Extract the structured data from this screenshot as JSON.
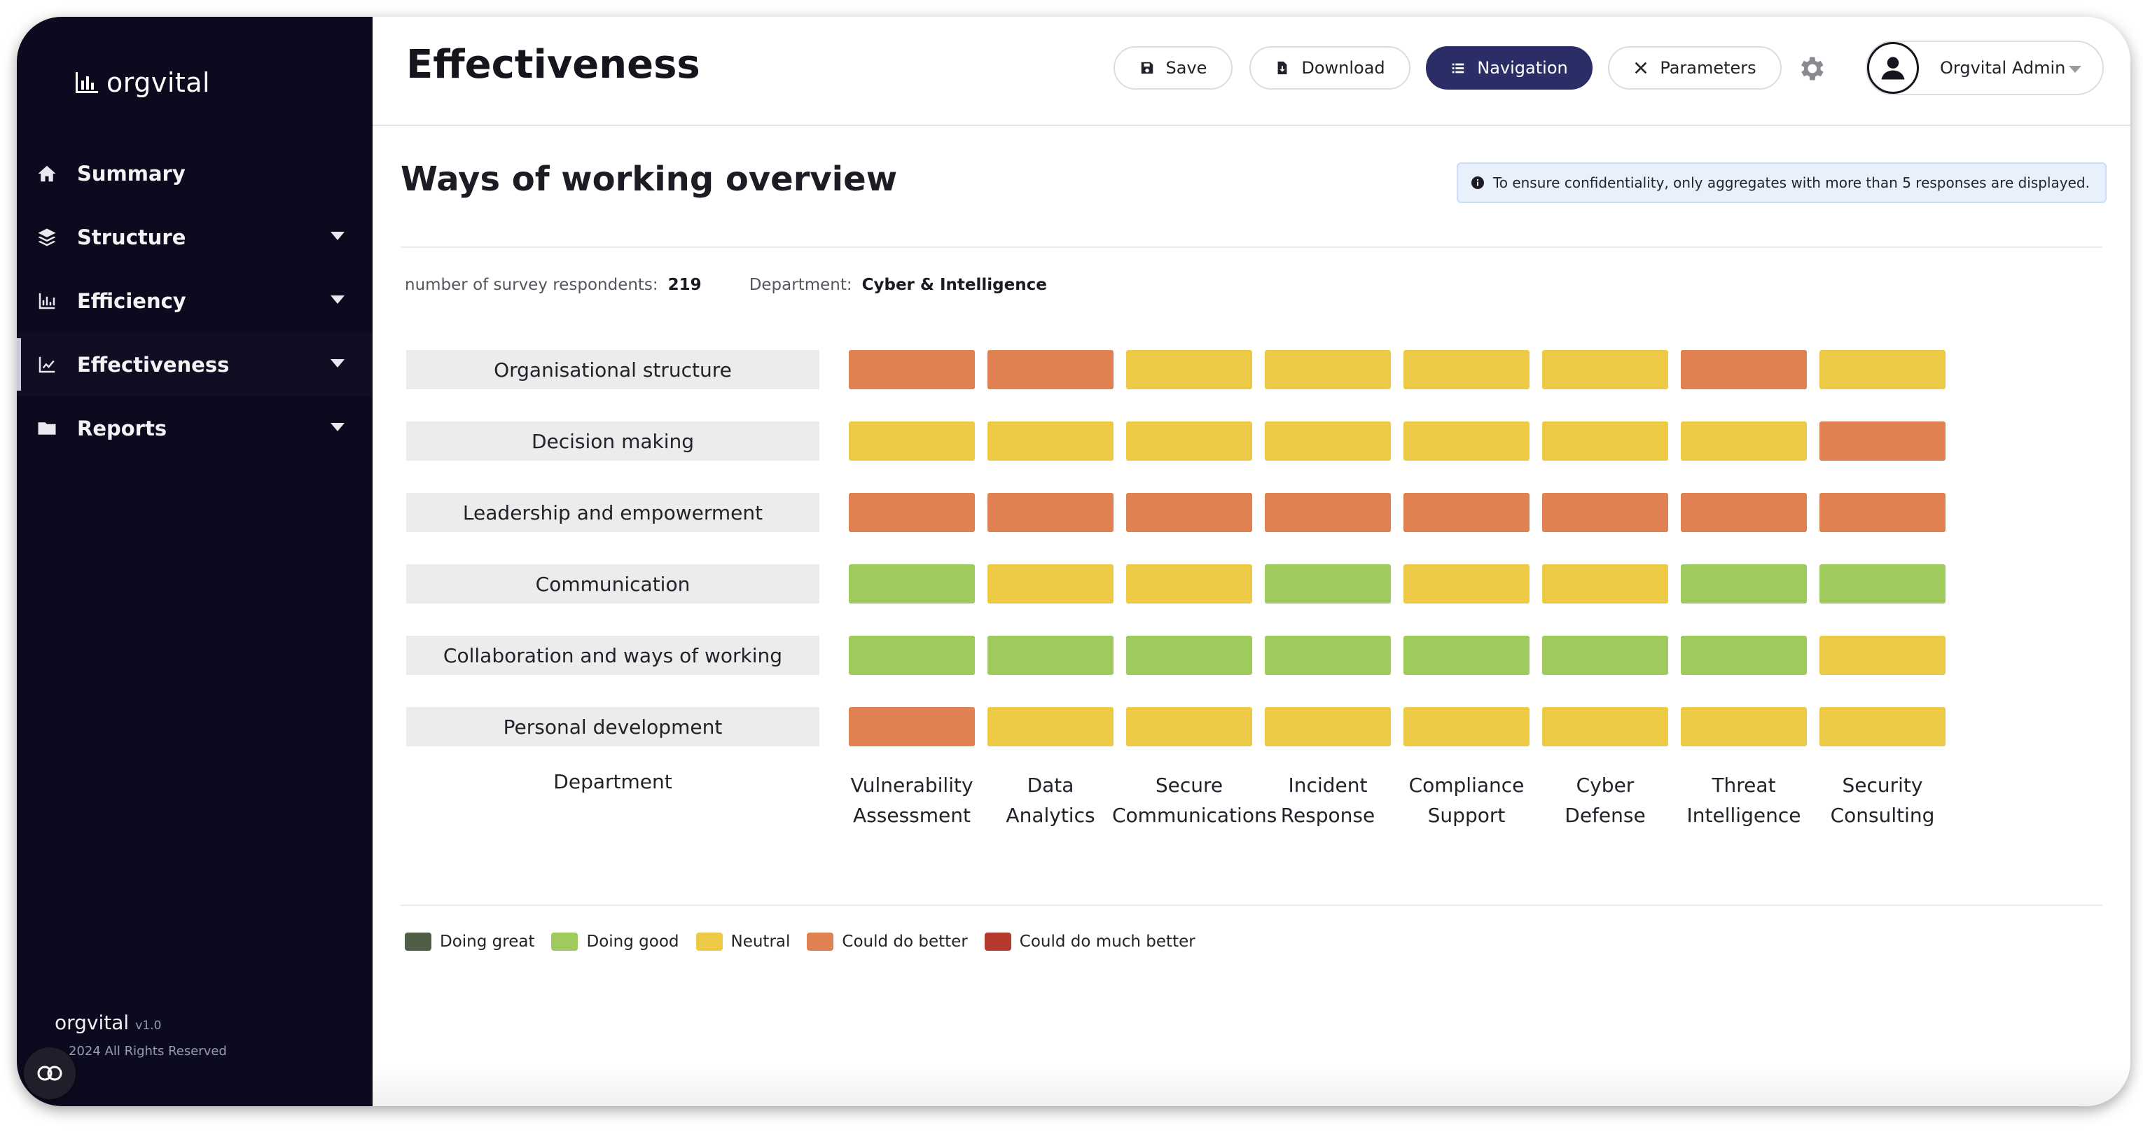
{
  "app": {
    "brand": "orgvital",
    "version": "v1.0",
    "copyright": "2024 All Rights Reserved"
  },
  "sidebar": {
    "items": [
      {
        "label": "Summary",
        "icon": "home-icon",
        "dropdown": false
      },
      {
        "label": "Structure",
        "icon": "layers-icon",
        "dropdown": true
      },
      {
        "label": "Efficiency",
        "icon": "bar-chart-icon",
        "dropdown": true
      },
      {
        "label": "Effectiveness",
        "icon": "line-chart-icon",
        "dropdown": true,
        "active": true
      },
      {
        "label": "Reports",
        "icon": "folder-icon",
        "dropdown": true
      }
    ]
  },
  "header": {
    "title": "Effectiveness",
    "buttons": {
      "save": "Save",
      "download": "Download",
      "navigation": "Navigation",
      "parameters": "Parameters"
    },
    "user": "Orgvital Admin"
  },
  "main": {
    "section_title": "Ways of working overview",
    "notice": "To ensure confidentiality, only aggregates with more than 5 responses are displayed.",
    "respondents_label": "number of survey respondents:",
    "respondents_value": "219",
    "department_label": "Department:",
    "department_value": "Cyber & Intelligence"
  },
  "colors": {
    "doing_great": "#4e5e47",
    "doing_good": "#9eca5e",
    "neutral": "#ecca46",
    "could_do_better": "#e08152",
    "could_do_much_better": "#b33a2c"
  },
  "chart_data": {
    "type": "heatmap",
    "x_axis_title": "Department",
    "rows": [
      "Organisational structure",
      "Decision making",
      "Leadership and empowerment",
      "Communication",
      "Collaboration and ways of working",
      "Personal development"
    ],
    "columns": [
      "Vulnerability\nAssessment",
      "Data\nAnalytics",
      "Secure\nCommunications",
      "Incident\nResponse",
      "Compliance\nSupport",
      "Cyber\nDefense",
      "Threat\nIntelligence",
      "Security\nConsulting"
    ],
    "values": [
      [
        "could_do_better",
        "could_do_better",
        "neutral",
        "neutral",
        "neutral",
        "neutral",
        "could_do_better",
        "neutral"
      ],
      [
        "neutral",
        "neutral",
        "neutral",
        "neutral",
        "neutral",
        "neutral",
        "neutral",
        "could_do_better"
      ],
      [
        "could_do_better",
        "could_do_better",
        "could_do_better",
        "could_do_better",
        "could_do_better",
        "could_do_better",
        "could_do_better",
        "could_do_better"
      ],
      [
        "doing_good",
        "neutral",
        "neutral",
        "doing_good",
        "neutral",
        "neutral",
        "doing_good",
        "doing_good"
      ],
      [
        "doing_good",
        "doing_good",
        "doing_good",
        "doing_good",
        "doing_good",
        "doing_good",
        "doing_good",
        "neutral"
      ],
      [
        "could_do_better",
        "neutral",
        "neutral",
        "neutral",
        "neutral",
        "neutral",
        "neutral",
        "neutral"
      ]
    ],
    "legend": [
      {
        "key": "doing_great",
        "label": "Doing great"
      },
      {
        "key": "doing_good",
        "label": "Doing good"
      },
      {
        "key": "neutral",
        "label": "Neutral"
      },
      {
        "key": "could_do_better",
        "label": "Could do better"
      },
      {
        "key": "could_do_much_better",
        "label": "Could do much better"
      }
    ]
  }
}
